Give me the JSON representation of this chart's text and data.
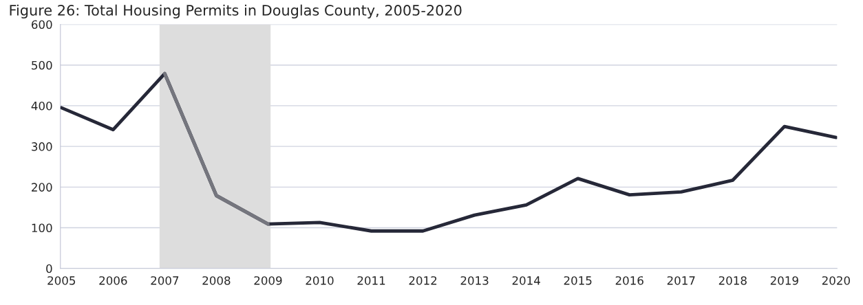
{
  "chart_data": {
    "type": "line",
    "title": "Figure 26: Total Housing Permits in Douglas County, 2005-2020",
    "categories": [
      "2005",
      "2006",
      "2007",
      "2008",
      "2009",
      "2010",
      "2011",
      "2012",
      "2013",
      "2014",
      "2015",
      "2016",
      "2017",
      "2018",
      "2019",
      "2020"
    ],
    "series": [
      {
        "color": "#262838",
        "values": [
          395,
          341,
          479,
          179,
          109,
          113,
          92,
          92,
          131,
          156,
          221,
          181,
          188,
          217,
          349,
          322
        ]
      },
      {
        "color": "#75767e",
        "values": [
          null,
          null,
          479,
          179,
          109,
          null,
          null,
          null,
          null,
          null,
          null,
          null,
          null,
          null,
          null,
          null
        ]
      }
    ],
    "bands": [
      {
        "axis": "x",
        "from": "2007",
        "to": "2009",
        "color": "#dddddd"
      }
    ],
    "ylim": [
      0,
      600
    ],
    "yticks": [
      0,
      100,
      200,
      300,
      400,
      500,
      600
    ],
    "grid": "y",
    "legend": false,
    "marker": "none",
    "line_style": "solid"
  }
}
